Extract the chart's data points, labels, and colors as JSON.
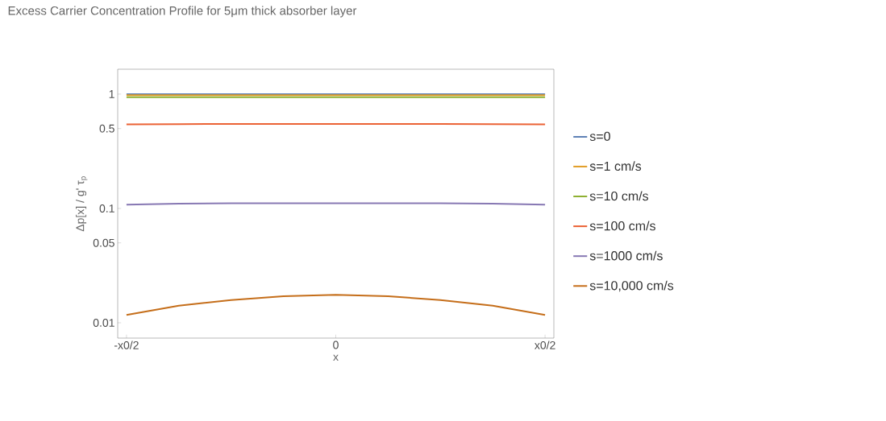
{
  "chart_data": {
    "type": "line",
    "title": "Excess Carrier Concentration Profile for 5μm thick absorber layer",
    "xlabel": "x",
    "ylabel": "Δp[x] / g' τ$_{p}$",
    "log": "y",
    "legend": "right",
    "ylim": [
      0.00735,
      1.65
    ],
    "categories": [
      "-x0/2",
      null,
      null,
      null,
      "0",
      null,
      null,
      null,
      "x0/2"
    ],
    "yticks": [
      0.01,
      0.05,
      0.1,
      0.5,
      1
    ],
    "series": [
      {
        "name": "s=0",
        "color": "#5e81b5",
        "values": [
          1,
          1,
          1,
          1,
          1,
          1,
          1,
          1,
          1
        ]
      },
      {
        "name": "s=1 cm/s",
        "color": "#e19c24",
        "values": [
          0.98,
          0.98,
          0.98,
          0.98,
          0.98,
          0.98,
          0.98,
          0.98,
          0.98
        ]
      },
      {
        "name": "s=10 cm/s",
        "color": "#8fb032",
        "values": [
          0.94,
          0.94,
          0.94,
          0.94,
          0.94,
          0.94,
          0.94,
          0.94,
          0.94
        ]
      },
      {
        "name": "s=100 cm/s",
        "color": "#eb6235",
        "values": [
          0.544,
          0.546,
          0.548,
          0.549,
          0.549,
          0.549,
          0.548,
          0.546,
          0.544
        ]
      },
      {
        "name": "s=1000 cm/s",
        "color": "#8778b3",
        "values": [
          0.108,
          0.11,
          0.111,
          0.111,
          0.111,
          0.111,
          0.111,
          0.11,
          0.108
        ]
      },
      {
        "name": "s=10,000 cm/s",
        "color": "#c56e1a",
        "values": [
          0.0117,
          0.0141,
          0.0158,
          0.0171,
          0.0176,
          0.0171,
          0.0158,
          0.0141,
          0.0117
        ]
      }
    ]
  }
}
